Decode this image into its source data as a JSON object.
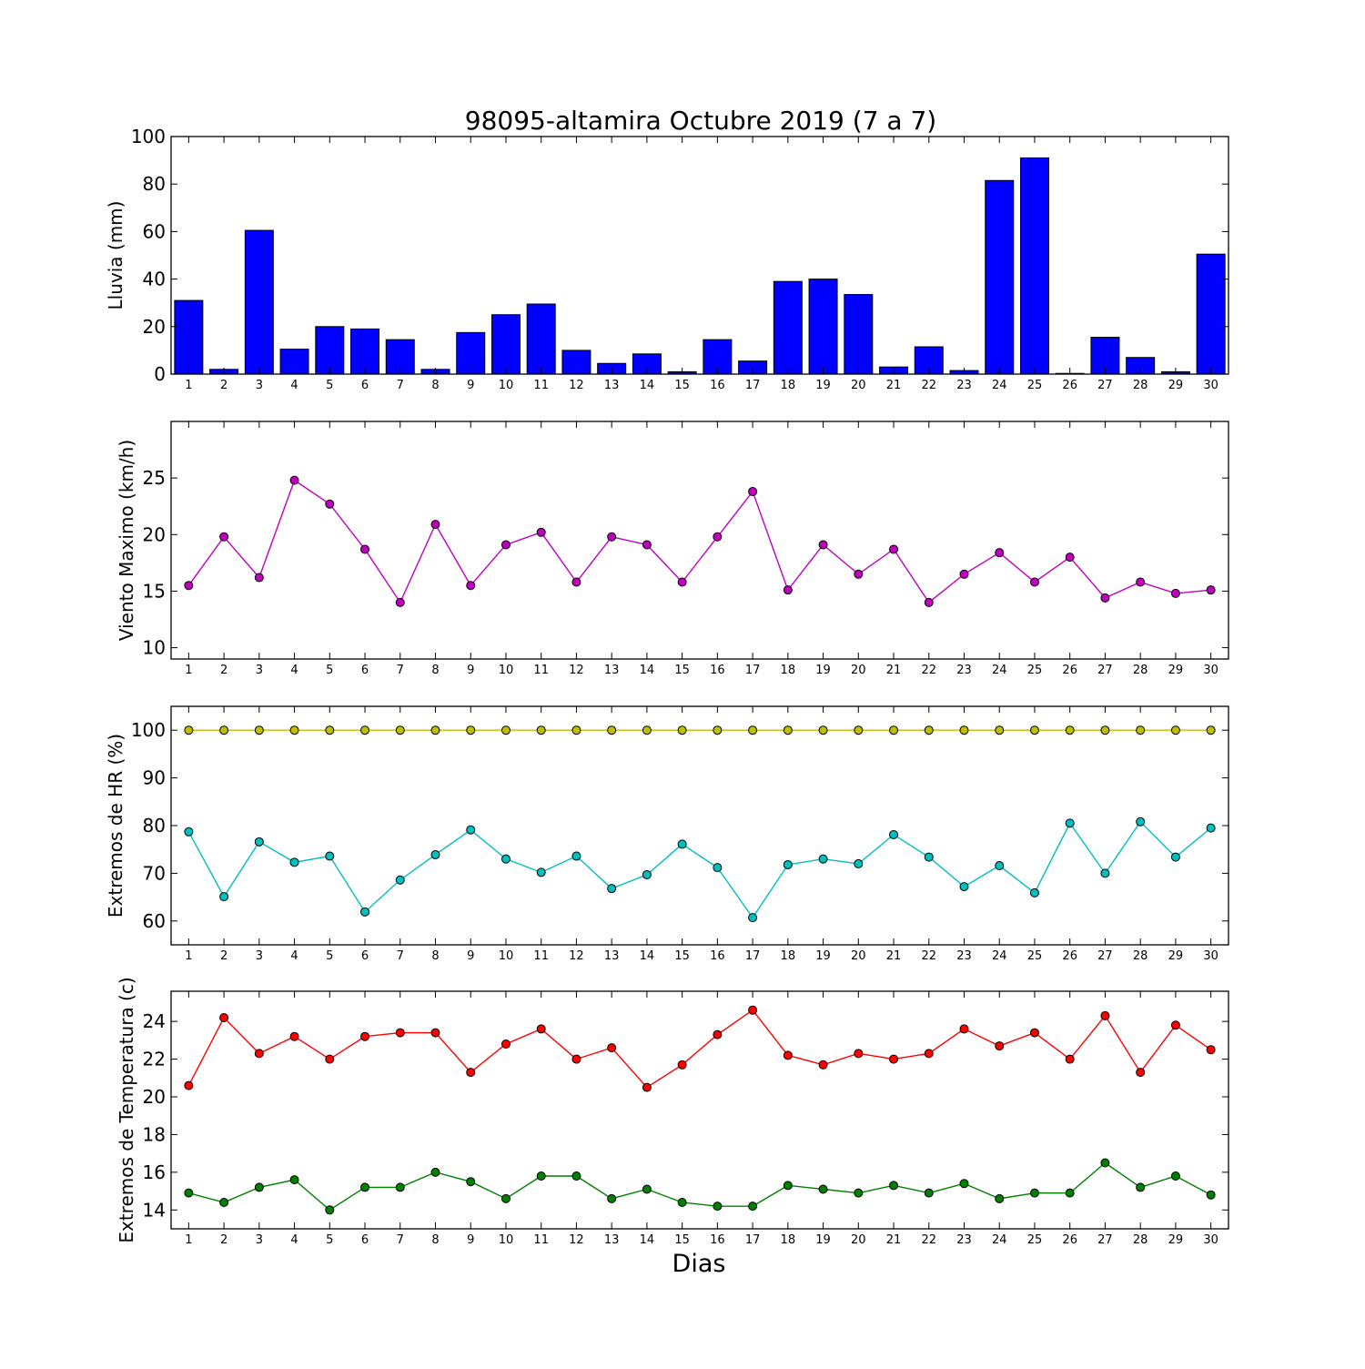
{
  "figure": {
    "title": "98095-altamira Octubre 2019  (7 a 7)",
    "xlabel": "Dias"
  },
  "chart_data": [
    {
      "type": "bar",
      "ylabel": "Lluvia (mm)",
      "x": [
        1,
        2,
        3,
        4,
        5,
        6,
        7,
        8,
        9,
        10,
        11,
        12,
        13,
        14,
        15,
        16,
        17,
        18,
        19,
        20,
        21,
        22,
        23,
        24,
        25,
        26,
        27,
        28,
        29,
        30
      ],
      "values": [
        31,
        2,
        60.5,
        10.5,
        20,
        19,
        14.5,
        2,
        17.5,
        25,
        29.5,
        10,
        4.5,
        8.5,
        1,
        14.5,
        5.5,
        39,
        40,
        33.5,
        3,
        11.5,
        1.5,
        81.5,
        91,
        0.3,
        15.5,
        7,
        1,
        50.5
      ],
      "ylim": [
        0,
        100
      ],
      "yticks": [
        0,
        20,
        40,
        60,
        80,
        100
      ],
      "color": "#0000ff",
      "grid": false
    },
    {
      "type": "line",
      "ylabel": "Viento Maximo (km/h)",
      "x": [
        1,
        2,
        3,
        4,
        5,
        6,
        7,
        8,
        9,
        10,
        11,
        12,
        13,
        14,
        15,
        16,
        17,
        18,
        19,
        20,
        21,
        22,
        23,
        24,
        25,
        26,
        27,
        28,
        29,
        30
      ],
      "series": [
        {
          "color": "#bf00bf",
          "values": [
            15.5,
            19.8,
            16.2,
            24.8,
            22.7,
            18.7,
            14.0,
            20.9,
            15.5,
            19.1,
            20.2,
            15.8,
            19.8,
            19.1,
            15.8,
            19.8,
            23.8,
            15.1,
            19.1,
            16.5,
            18.7,
            14.0,
            16.5,
            18.4,
            15.8,
            18.0,
            14.4,
            15.8,
            14.8,
            15.1
          ]
        }
      ],
      "ylim": [
        9,
        30
      ],
      "yticks": [
        10,
        15,
        20,
        25
      ],
      "grid": false
    },
    {
      "type": "line",
      "ylabel": "Extremos de HR (%)",
      "x": [
        1,
        2,
        3,
        4,
        5,
        6,
        7,
        8,
        9,
        10,
        11,
        12,
        13,
        14,
        15,
        16,
        17,
        18,
        19,
        20,
        21,
        22,
        23,
        24,
        25,
        26,
        27,
        28,
        29,
        30
      ],
      "series": [
        {
          "color": "#bfbf00",
          "values": [
            100,
            100,
            100,
            100,
            100,
            100,
            100,
            100,
            100,
            100,
            100,
            100,
            100,
            100,
            100,
            100,
            100,
            100,
            100,
            100,
            100,
            100,
            100,
            100,
            100,
            100,
            100,
            100,
            100,
            100
          ]
        },
        {
          "color": "#00bfbf",
          "values": [
            78.7,
            65.1,
            76.6,
            72.3,
            73.6,
            61.9,
            68.6,
            73.9,
            79.1,
            73.0,
            70.2,
            73.6,
            66.8,
            69.7,
            76.1,
            71.2,
            60.7,
            71.8,
            73.0,
            72.0,
            78.1,
            73.4,
            67.2,
            71.6,
            65.9,
            80.5,
            70.0,
            80.8,
            73.4,
            79.5
          ]
        }
      ],
      "ylim": [
        55,
        105
      ],
      "yticks": [
        60,
        70,
        80,
        90,
        100
      ],
      "grid": false
    },
    {
      "type": "line",
      "ylabel": "Extremos de Temperatura (c)",
      "x": [
        1,
        2,
        3,
        4,
        5,
        6,
        7,
        8,
        9,
        10,
        11,
        12,
        13,
        14,
        15,
        16,
        17,
        18,
        19,
        20,
        21,
        22,
        23,
        24,
        25,
        26,
        27,
        28,
        29,
        30
      ],
      "series": [
        {
          "color": "#ff0000",
          "values": [
            20.6,
            24.2,
            22.3,
            23.2,
            22.0,
            23.2,
            23.4,
            23.4,
            21.3,
            22.8,
            23.6,
            22.0,
            22.6,
            20.5,
            21.7,
            23.3,
            24.6,
            22.2,
            21.7,
            22.3,
            22.0,
            22.3,
            23.6,
            22.7,
            23.4,
            22.0,
            24.3,
            21.3,
            23.8,
            22.5
          ]
        },
        {
          "color": "#008000",
          "values": [
            14.9,
            14.4,
            15.2,
            15.6,
            14.0,
            15.2,
            15.2,
            16.0,
            15.5,
            14.6,
            15.8,
            15.8,
            14.6,
            15.1,
            14.4,
            14.2,
            14.2,
            15.3,
            15.1,
            14.9,
            15.3,
            14.9,
            15.4,
            14.6,
            14.9,
            14.9,
            16.5,
            15.2,
            15.8,
            14.8
          ]
        }
      ],
      "ylim": [
        13,
        25.6
      ],
      "yticks": [
        14,
        16,
        18,
        20,
        22,
        24
      ],
      "grid": false
    }
  ]
}
